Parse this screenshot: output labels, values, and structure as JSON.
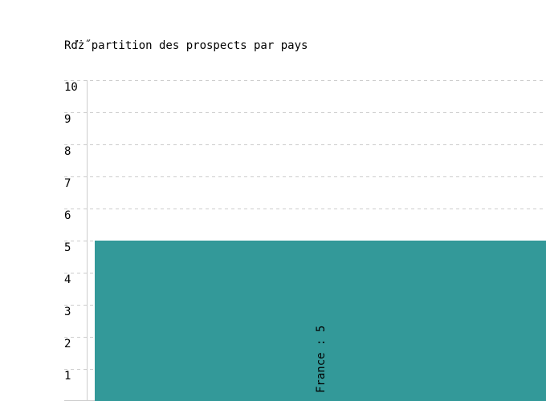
{
  "chart_data": {
    "type": "bar",
    "title": "Rďż˝partition des prospects par pays",
    "categories": [
      "France"
    ],
    "values": [
      5
    ],
    "data_labels": [
      "France : 5"
    ],
    "ylim": [
      0,
      10
    ],
    "yticks": [
      "1",
      "2",
      "3",
      "4",
      "5",
      "6",
      "7",
      "8",
      "9",
      "10"
    ],
    "grid": true,
    "bar_color": "#339999"
  }
}
